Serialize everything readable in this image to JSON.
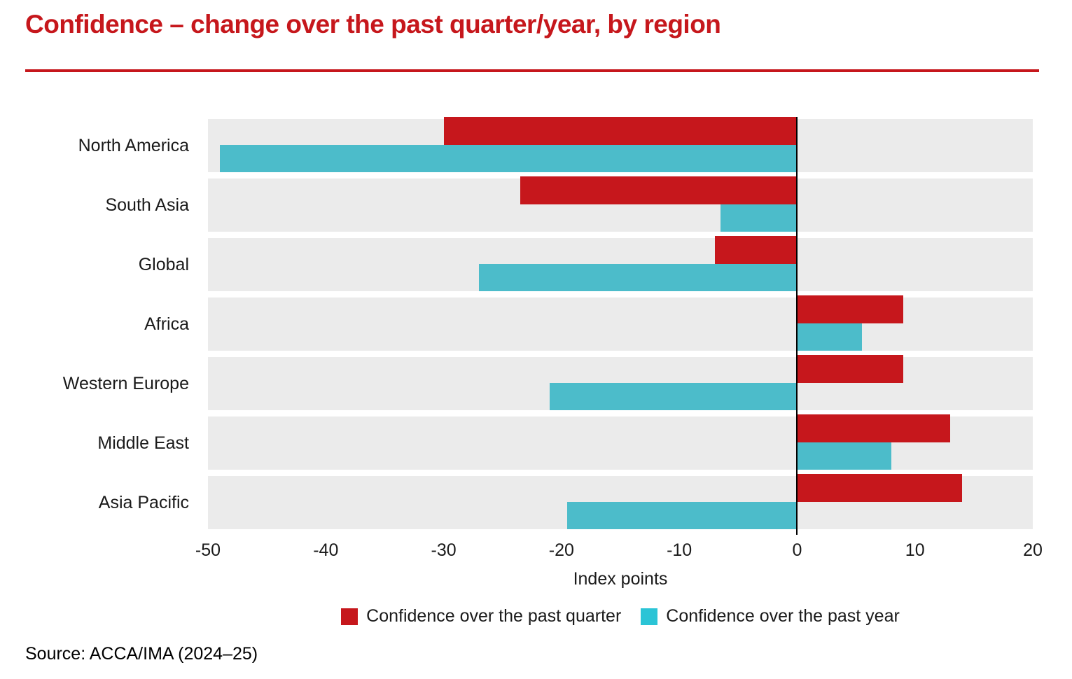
{
  "title": "Confidence – change over the past quarter/year, by region",
  "source": "Source: ACCA/IMA (2024–25)",
  "colors": {
    "title_red": "#c6171c",
    "quarter_bar": "#c6171c",
    "year_bar": "#4cbcca",
    "year_legend_swatch": "#2bc4d6",
    "row_band": "#ebebeb",
    "zero_line": "#000000",
    "text": "#1a1a1a"
  },
  "chart_data": {
    "type": "bar",
    "orientation": "horizontal",
    "title": "Confidence – change over the past quarter/year, by region",
    "categories": [
      "North America",
      "South Asia",
      "Global",
      "Africa",
      "Western Europe",
      "Middle East",
      "Asia Pacific"
    ],
    "series": [
      {
        "name": "Confidence over the past quarter",
        "color": "#c6171c",
        "legend_color": "#c6171c",
        "values": [
          -30,
          -23.5,
          -7,
          9,
          9,
          13,
          14
        ]
      },
      {
        "name": "Confidence over the past year",
        "color": "#4cbcca",
        "legend_color": "#2bc4d6",
        "values": [
          -49,
          -6.5,
          -27,
          5.5,
          -21,
          8,
          -19.5
        ]
      }
    ],
    "xlabel": "Index points",
    "xlim": [
      -50,
      20
    ],
    "xticks": [
      -50,
      -40,
      -30,
      -20,
      -10,
      0,
      10,
      20
    ],
    "grid": false,
    "legend_position": "bottom"
  }
}
